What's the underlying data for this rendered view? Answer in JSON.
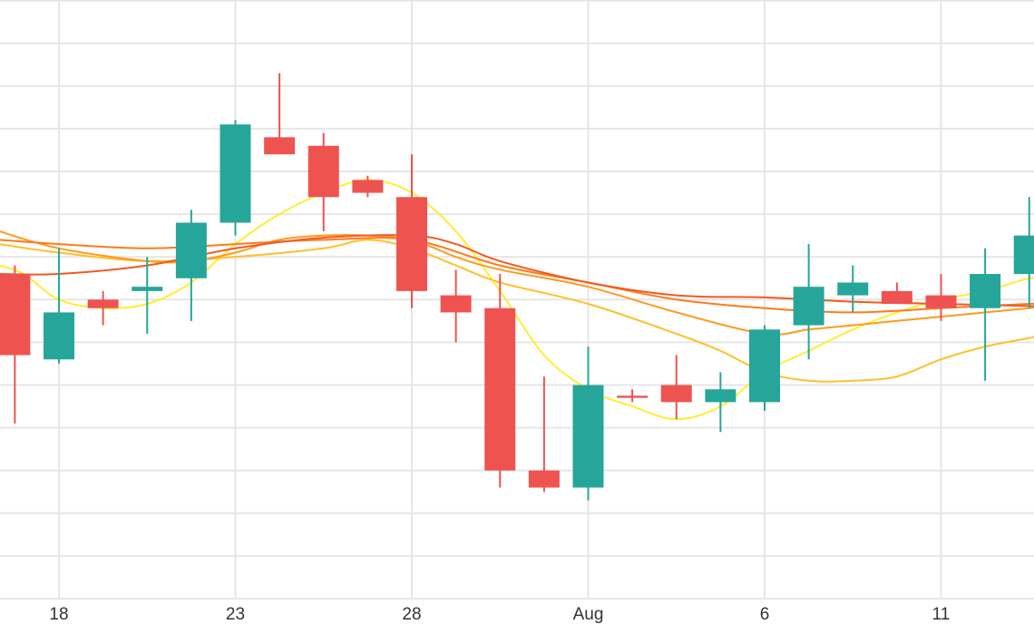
{
  "chart_data": {
    "type": "candlestick",
    "title": "",
    "xlabel": "",
    "ylabel": "",
    "x_tick_labels": [
      {
        "day": 0,
        "label": "18"
      },
      {
        "day": 5,
        "label": "23"
      },
      {
        "day": 10,
        "label": "28"
      },
      {
        "day": 15,
        "label": "Aug"
      },
      {
        "day": 20,
        "label": "6"
      },
      {
        "day": 25,
        "label": "11"
      }
    ],
    "y_range": [
      0,
      14
    ],
    "grid": true,
    "legend": "none",
    "colors": {
      "up": "#26a69a",
      "down": "#ef5350",
      "grid": "#e6e6e6",
      "ma": [
        "#ffee33",
        "#ffc02a",
        "#ff9a1e",
        "#ff7a1a",
        "#f15a22"
      ]
    },
    "candles": [
      {
        "day": -1.25,
        "open": 7.6,
        "high": 7.8,
        "low": 4.1,
        "close": 5.7
      },
      {
        "day": 0,
        "open": 5.6,
        "high": 8.2,
        "low": 5.5,
        "close": 6.7
      },
      {
        "day": 1.25,
        "open": 7.0,
        "high": 7.2,
        "low": 6.4,
        "close": 6.8
      },
      {
        "day": 2.5,
        "open": 7.2,
        "high": 8.0,
        "low": 6.2,
        "close": 7.3
      },
      {
        "day": 3.75,
        "open": 7.5,
        "high": 9.1,
        "low": 6.5,
        "close": 8.8
      },
      {
        "day": 5,
        "open": 8.8,
        "high": 11.2,
        "low": 8.5,
        "close": 11.1
      },
      {
        "day": 6.25,
        "open": 10.8,
        "high": 12.3,
        "low": 10.4,
        "close": 10.4
      },
      {
        "day": 7.5,
        "open": 10.6,
        "high": 10.9,
        "low": 8.6,
        "close": 9.4
      },
      {
        "day": 8.75,
        "open": 9.8,
        "high": 9.9,
        "low": 9.4,
        "close": 9.5
      },
      {
        "day": 10,
        "open": 9.4,
        "high": 10.4,
        "low": 6.8,
        "close": 7.2
      },
      {
        "day": 11.25,
        "open": 7.1,
        "high": 7.7,
        "low": 6.0,
        "close": 6.7
      },
      {
        "day": 12.5,
        "open": 6.8,
        "high": 7.6,
        "low": 2.6,
        "close": 3.0
      },
      {
        "day": 13.75,
        "open": 3.0,
        "high": 5.2,
        "low": 2.5,
        "close": 2.6
      },
      {
        "day": 15,
        "open": 2.6,
        "high": 5.9,
        "low": 2.3,
        "close": 5.0
      },
      {
        "day": 16.25,
        "open": 4.75,
        "high": 4.9,
        "low": 4.6,
        "close": 4.7
      },
      {
        "day": 17.5,
        "open": 5.0,
        "high": 5.7,
        "low": 4.2,
        "close": 4.6
      },
      {
        "day": 18.75,
        "open": 4.6,
        "high": 5.3,
        "low": 3.9,
        "close": 4.9
      },
      {
        "day": 20,
        "open": 4.6,
        "high": 6.4,
        "low": 4.4,
        "close": 6.3
      },
      {
        "day": 21.25,
        "open": 6.4,
        "high": 8.3,
        "low": 5.6,
        "close": 7.3
      },
      {
        "day": 22.5,
        "open": 7.1,
        "high": 7.8,
        "low": 6.7,
        "close": 7.4
      },
      {
        "day": 23.75,
        "open": 7.2,
        "high": 7.4,
        "low": 6.9,
        "close": 6.9
      },
      {
        "day": 25,
        "open": 7.1,
        "high": 7.6,
        "low": 6.5,
        "close": 6.8
      },
      {
        "day": 26.25,
        "open": 6.8,
        "high": 8.2,
        "low": 5.1,
        "close": 7.6
      },
      {
        "day": 27.5,
        "open": 7.6,
        "high": 9.4,
        "low": 6.8,
        "close": 8.5
      }
    ],
    "moving_averages": [
      {
        "color": "#ffee33",
        "points": [
          [
            -1.7,
            7.8
          ],
          [
            -1,
            7.6
          ],
          [
            0,
            7.0
          ],
          [
            1.25,
            6.8
          ],
          [
            2.5,
            6.9
          ],
          [
            3.75,
            7.4
          ],
          [
            5,
            8.3
          ],
          [
            6.25,
            9.0
          ],
          [
            7.5,
            9.5
          ],
          [
            8.75,
            9.8
          ],
          [
            10,
            9.5
          ],
          [
            11.25,
            8.6
          ],
          [
            12.5,
            7.2
          ],
          [
            13.75,
            5.7
          ],
          [
            15,
            4.9
          ],
          [
            16.25,
            4.5
          ],
          [
            17.5,
            4.2
          ],
          [
            18.75,
            4.5
          ],
          [
            20,
            5.3
          ],
          [
            21.25,
            5.8
          ],
          [
            22.5,
            6.3
          ],
          [
            23.75,
            6.7
          ],
          [
            25,
            7.0
          ],
          [
            26.25,
            7.2
          ],
          [
            27.5,
            7.5
          ],
          [
            28,
            7.5
          ]
        ]
      },
      {
        "color": "#ffc02a",
        "points": [
          [
            -1.7,
            8.3
          ],
          [
            0,
            8.1
          ],
          [
            2.5,
            7.9
          ],
          [
            5,
            8.0
          ],
          [
            7.5,
            8.2
          ],
          [
            8.75,
            8.4
          ],
          [
            10,
            8.2
          ],
          [
            11.25,
            7.8
          ],
          [
            12.5,
            7.4
          ],
          [
            15,
            6.9
          ],
          [
            17.5,
            6.2
          ],
          [
            18.75,
            5.8
          ],
          [
            20,
            5.3
          ],
          [
            21.25,
            5.1
          ],
          [
            22.5,
            5.1
          ],
          [
            23.75,
            5.2
          ],
          [
            25,
            5.6
          ],
          [
            26.25,
            5.9
          ],
          [
            27.5,
            6.1
          ],
          [
            28,
            6.2
          ]
        ]
      },
      {
        "color": "#ff9a1e",
        "points": [
          [
            -1.7,
            8.6
          ],
          [
            0,
            8.2
          ],
          [
            2.5,
            7.9
          ],
          [
            3.75,
            7.9
          ],
          [
            5,
            8.1
          ],
          [
            6.25,
            8.4
          ],
          [
            7.5,
            8.5
          ],
          [
            8.75,
            8.5
          ],
          [
            10,
            8.4
          ],
          [
            11.25,
            8.0
          ],
          [
            12.5,
            7.7
          ],
          [
            15,
            7.3
          ],
          [
            17.5,
            6.7
          ],
          [
            20,
            6.2
          ],
          [
            21.25,
            6.3
          ],
          [
            22.5,
            6.4
          ],
          [
            23.75,
            6.5
          ],
          [
            25,
            6.6
          ],
          [
            26.25,
            6.7
          ],
          [
            27.5,
            6.8
          ],
          [
            28,
            6.85
          ]
        ]
      },
      {
        "color": "#ff7a1a",
        "points": [
          [
            -1.7,
            8.4
          ],
          [
            0,
            8.3
          ],
          [
            2.5,
            8.2
          ],
          [
            5,
            8.3
          ],
          [
            7.5,
            8.4
          ],
          [
            10,
            8.4
          ],
          [
            12.5,
            7.8
          ],
          [
            15,
            7.4
          ],
          [
            17.5,
            7.0
          ],
          [
            20,
            6.8
          ],
          [
            22.5,
            6.7
          ],
          [
            25,
            6.8
          ],
          [
            26.25,
            6.85
          ],
          [
            27.5,
            6.9
          ],
          [
            28,
            6.9
          ]
        ]
      },
      {
        "color": "#f15a22",
        "points": [
          [
            -1.7,
            7.6
          ],
          [
            0,
            7.6
          ],
          [
            2.5,
            7.8
          ],
          [
            5,
            8.2
          ],
          [
            7.5,
            8.45
          ],
          [
            10,
            8.5
          ],
          [
            11.25,
            8.3
          ],
          [
            12.5,
            7.9
          ],
          [
            15,
            7.4
          ],
          [
            17.5,
            7.1
          ],
          [
            20,
            7.05
          ],
          [
            22.5,
            6.95
          ],
          [
            25,
            6.9
          ],
          [
            27.5,
            6.85
          ],
          [
            28,
            6.85
          ]
        ]
      }
    ]
  }
}
